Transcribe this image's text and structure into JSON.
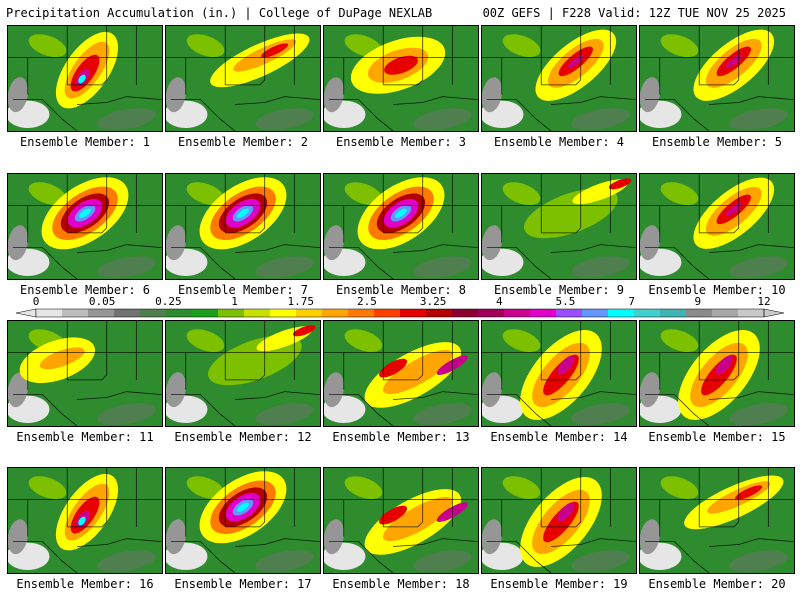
{
  "header": {
    "title_left": "Precipitation Accumulation (in.) | College of DuPage NEXLAB",
    "title_right": "00Z GEFS | F228 Valid: 12Z TUE NOV 25 2025"
  },
  "legend": {
    "tick_labels": [
      "0",
      "0.05",
      "0.25",
      "1",
      "1.75",
      "2.5",
      "3.25",
      "4",
      "5.5",
      "7",
      "9",
      "12"
    ],
    "colors": [
      "#e6e6e6",
      "#bdbdbd",
      "#969696",
      "#737373",
      "#4f7f4f",
      "#2e8b2e",
      "#1aa01a",
      "#7cc000",
      "#c8e000",
      "#ffff00",
      "#ffd000",
      "#ffa500",
      "#ff7a00",
      "#ff4000",
      "#e60000",
      "#b40000",
      "#8b0030",
      "#a0005a",
      "#c8008c",
      "#e000c8",
      "#9a4dff",
      "#6496ff",
      "#00ffff",
      "#40d0d0",
      "#40b4b4",
      "#8c8c8c",
      "#a8a8a8",
      "#c8c8c8"
    ]
  },
  "members": [
    {
      "label": "Ensemble Member: 1",
      "scheme": "central-strong"
    },
    {
      "label": "Ensemble Member: 2",
      "scheme": "ne-light"
    },
    {
      "label": "Ensemble Member: 3",
      "scheme": "central-mid"
    },
    {
      "label": "Ensemble Member: 4",
      "scheme": "ne-mid"
    },
    {
      "label": "Ensemble Member: 5",
      "scheme": "ne-mid"
    },
    {
      "label": "Ensemble Member: 6",
      "scheme": "central-extreme"
    },
    {
      "label": "Ensemble Member: 7",
      "scheme": "central-extreme"
    },
    {
      "label": "Ensemble Member: 8",
      "scheme": "central-extreme"
    },
    {
      "label": "Ensemble Member: 9",
      "scheme": "dry"
    },
    {
      "label": "Ensemble Member: 10",
      "scheme": "ne-mid"
    },
    {
      "label": "Ensemble Member: 11",
      "scheme": "west-light"
    },
    {
      "label": "Ensemble Member: 12",
      "scheme": "dry"
    },
    {
      "label": "Ensemble Member: 13",
      "scheme": "east-mid"
    },
    {
      "label": "Ensemble Member: 14",
      "scheme": "east-strong"
    },
    {
      "label": "Ensemble Member: 15",
      "scheme": "east-strong"
    },
    {
      "label": "Ensemble Member: 16",
      "scheme": "central-strong"
    },
    {
      "label": "Ensemble Member: 17",
      "scheme": "central-extreme"
    },
    {
      "label": "Ensemble Member: 18",
      "scheme": "east-mid"
    },
    {
      "label": "Ensemble Member: 19",
      "scheme": "east-strong"
    },
    {
      "label": "Ensemble Member: 20",
      "scheme": "ne-light"
    }
  ]
}
